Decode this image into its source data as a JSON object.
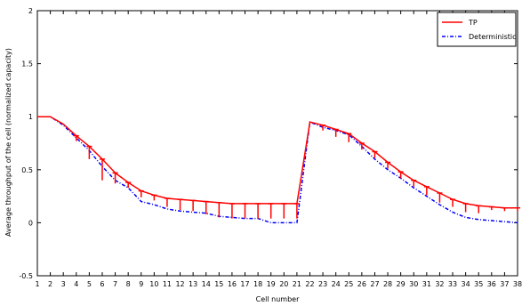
{
  "chart_data": {
    "type": "line",
    "xlabel": "Cell number",
    "ylabel": "Average throughput of the cell (normalized capacity)",
    "xlim": [
      1,
      38
    ],
    "ylim": [
      -0.5,
      2
    ],
    "yticks": [
      -0.5,
      0,
      0.5,
      1,
      1.5,
      2
    ],
    "ytick_labels": [
      "-0.5",
      "0",
      "0.5",
      "1",
      "1.5",
      "2"
    ],
    "grid": false,
    "legend_position": "top-right",
    "colors": {
      "series_1": "#ff0000",
      "series_2": "#0000ff"
    },
    "series": [
      {
        "name": "TP",
        "style": "solid-with-error-bars",
        "color": "#ff0000",
        "x": [
          1,
          2,
          3,
          4,
          5,
          6,
          7,
          8,
          9,
          10,
          11,
          12,
          13,
          14,
          15,
          16,
          17,
          18,
          19,
          20,
          21,
          22,
          23,
          24,
          25,
          26,
          27,
          28,
          29,
          30,
          31,
          32,
          33,
          34,
          35,
          36,
          37,
          38
        ],
        "y": [
          1.0,
          1.0,
          0.93,
          0.82,
          0.72,
          0.6,
          0.47,
          0.38,
          0.3,
          0.26,
          0.23,
          0.22,
          0.21,
          0.2,
          0.19,
          0.18,
          0.18,
          0.18,
          0.18,
          0.18,
          0.18,
          0.95,
          0.92,
          0.88,
          0.84,
          0.75,
          0.67,
          0.57,
          0.48,
          0.4,
          0.34,
          0.28,
          0.22,
          0.18,
          0.16,
          0.15,
          0.14,
          0.14
        ],
        "err_low": [
          0,
          0,
          0,
          0.05,
          0.12,
          0.2,
          0.1,
          0.05,
          0.06,
          0.05,
          0.08,
          0.1,
          0.1,
          0.12,
          0.14,
          0.14,
          0.14,
          0.14,
          0.14,
          0.14,
          0.14,
          0,
          0.05,
          0.07,
          0.08,
          0.06,
          0.06,
          0.06,
          0.06,
          0.06,
          0.08,
          0.09,
          0.07,
          0.08,
          0.07,
          0.03,
          0.03,
          0.03
        ],
        "err_high": [
          0,
          0,
          0,
          0,
          0,
          0,
          0,
          0,
          0,
          0,
          0,
          0,
          0,
          0,
          0,
          0,
          0,
          0,
          0,
          0,
          0,
          0,
          0,
          0,
          0,
          0,
          0,
          0,
          0,
          0,
          0,
          0,
          0,
          0,
          0,
          0,
          0,
          0
        ]
      },
      {
        "name": "Deterministic",
        "style": "dash-dot",
        "color": "#0000ff",
        "x": [
          1,
          2,
          3,
          4,
          5,
          6,
          7,
          8,
          9,
          10,
          11,
          12,
          13,
          14,
          15,
          16,
          17,
          18,
          19,
          20,
          21,
          22,
          23,
          24,
          25,
          26,
          27,
          28,
          29,
          30,
          31,
          32,
          33,
          34,
          35,
          36,
          37,
          38
        ],
        "y": [
          1.0,
          1.0,
          0.92,
          0.8,
          0.68,
          0.53,
          0.4,
          0.33,
          0.2,
          0.17,
          0.13,
          0.11,
          0.1,
          0.09,
          0.06,
          0.05,
          0.04,
          0.04,
          0.0,
          0.0,
          0.0,
          0.95,
          0.9,
          0.87,
          0.83,
          0.72,
          0.6,
          0.5,
          0.42,
          0.33,
          0.25,
          0.17,
          0.1,
          0.05,
          0.03,
          0.02,
          0.01,
          0.0
        ]
      }
    ]
  }
}
